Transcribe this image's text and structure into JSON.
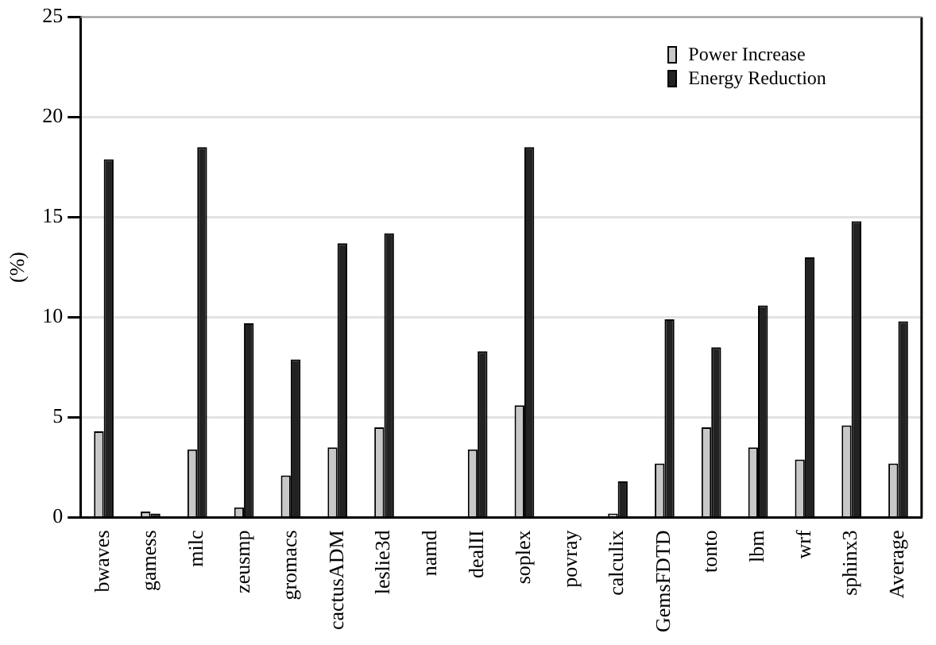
{
  "chart_data": {
    "type": "bar",
    "ylabel": "(%)",
    "categories": [
      "bwaves",
      "gamess",
      "milc",
      "zeusmp",
      "gromacs",
      "cactusADM",
      "leslie3d",
      "namd",
      "dealII",
      "soplex",
      "povray",
      "calculix",
      "GemsFDTD",
      "tonto",
      "lbm",
      "wrf",
      "sphinx3",
      "Average"
    ],
    "series": [
      {
        "name": "Power Increase",
        "color": "#c8c8c8",
        "values": [
          4.3,
          0.3,
          3.4,
          0.5,
          2.1,
          3.5,
          4.5,
          0,
          3.4,
          5.6,
          0,
          0.2,
          2.7,
          4.5,
          3.5,
          2.9,
          4.6,
          2.7
        ]
      },
      {
        "name": "Energy Reduction",
        "color": "#222222",
        "values": [
          17.9,
          0.2,
          18.5,
          9.7,
          7.9,
          13.7,
          14.2,
          0,
          8.3,
          18.5,
          0,
          1.8,
          9.9,
          8.5,
          10.6,
          13.0,
          14.8,
          9.8
        ]
      }
    ],
    "ylim": [
      0,
      25
    ],
    "yticks": [
      0,
      5,
      10,
      15,
      20,
      25
    ],
    "grid": "y",
    "legend": "top right"
  }
}
